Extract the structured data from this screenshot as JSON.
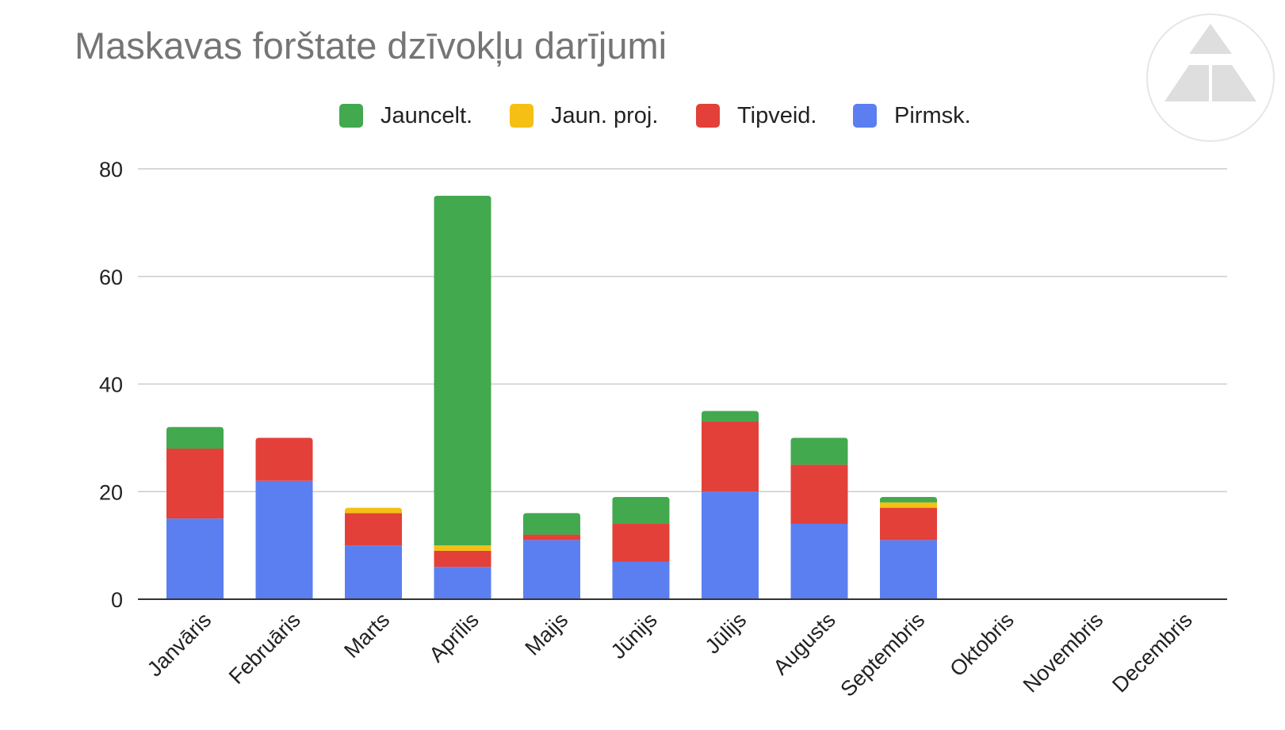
{
  "colors": {
    "Jauncelt.": "#43a94f",
    "Jaun. proj.": "#f5bf14",
    "Tipveid.": "#e3403a",
    "Pirmsk.": "#5b7ff1",
    "title": "#757575",
    "grid": "#cccccc",
    "axis": "#333333",
    "logo": "#dedede"
  },
  "logo": {
    "icon": "triangle-logo-icon"
  },
  "chart_data": {
    "type": "bar",
    "stacked": true,
    "title": "Maskavas forštate dzīvokļu darījumi",
    "xlabel": "",
    "ylabel": "",
    "ylim": [
      0,
      80
    ],
    "yticks": [
      0,
      20,
      40,
      60,
      80
    ],
    "grid": true,
    "legend_position": "top",
    "categories": [
      "Janvāris",
      "Februāris",
      "Marts",
      "Aprīlis",
      "Maijs",
      "Jūnijs",
      "Jūlijs",
      "Augusts",
      "Septembris",
      "Oktobris",
      "Novembris",
      "Decembris"
    ],
    "series": [
      {
        "name": "Pirmsk.",
        "values": [
          15,
          22,
          10,
          6,
          11,
          7,
          20,
          14,
          11,
          0,
          0,
          0
        ]
      },
      {
        "name": "Tipveid.",
        "values": [
          13,
          8,
          6,
          3,
          1,
          7,
          13,
          11,
          6,
          0,
          0,
          0
        ]
      },
      {
        "name": "Jaun. proj.",
        "values": [
          0,
          0,
          1,
          1,
          0,
          0,
          0,
          0,
          1,
          0,
          0,
          0
        ]
      },
      {
        "name": "Jauncelt.",
        "values": [
          4,
          0,
          0,
          65,
          4,
          5,
          2,
          5,
          1,
          0,
          0,
          0
        ]
      }
    ],
    "legend_order": [
      "Jauncelt.",
      "Jaun. proj.",
      "Tipveid.",
      "Pirmsk."
    ]
  }
}
